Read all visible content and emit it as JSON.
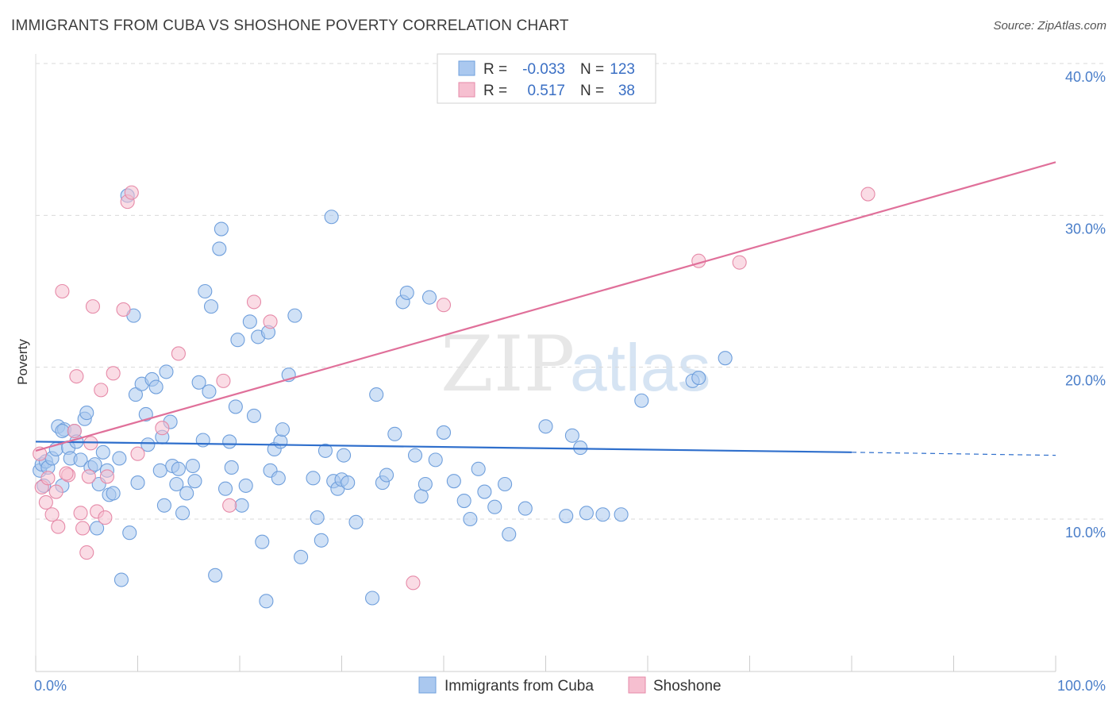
{
  "title": "IMMIGRANTS FROM CUBA VS SHOSHONE POVERTY CORRELATION CHART",
  "source": "Source: ZipAtlas.com",
  "watermark": {
    "zip": "ZIP",
    "atlas": "atlas"
  },
  "colors": {
    "blue_fill": "#aac8ef",
    "blue_stroke": "#6f9fdc",
    "blue_line": "#2f6fcc",
    "pink_fill": "#f6bfd0",
    "pink_stroke": "#e68aa8",
    "pink_line": "#e0709a",
    "grid": "#d9d9d9",
    "tick_text": "#4a7ec9"
  },
  "chart_data": {
    "type": "scatter",
    "xlabel": "",
    "ylabel": "Poverty",
    "xlim": [
      0,
      100
    ],
    "ylim": [
      0,
      42
    ],
    "x_ticks": [
      {
        "value": 0,
        "label": "0.0%"
      },
      {
        "value": 100,
        "label": "100.0%"
      }
    ],
    "y_ticks": [
      {
        "value": 10,
        "label": "10.0%"
      },
      {
        "value": 20,
        "label": "20.0%"
      },
      {
        "value": 30,
        "label": "30.0%"
      },
      {
        "value": 40,
        "label": "40.0%"
      }
    ],
    "legend": {
      "position": "top-center",
      "entries": [
        {
          "r_label": "R =",
          "r_value": "-0.033",
          "n_label": "N =",
          "n_value": "123"
        },
        {
          "r_label": "R =",
          "r_value": "0.517",
          "n_label": "N =",
          "n_value": "38"
        }
      ]
    },
    "series": [
      {
        "name": "Immigrants from Cuba",
        "color_key": "blue",
        "trend": {
          "x0": 0,
          "y0": 15.1,
          "x1": 80,
          "y1": 14.4,
          "dashed_to_x": 100,
          "dashed_to_y": 14.2
        },
        "points": [
          [
            0.4,
            13.2
          ],
          [
            0.6,
            13.6
          ],
          [
            0.8,
            12.2
          ],
          [
            1.0,
            13.8
          ],
          [
            1.2,
            13.4
          ],
          [
            1.6,
            14.0
          ],
          [
            2.0,
            14.6
          ],
          [
            2.2,
            16.1
          ],
          [
            2.6,
            12.2
          ],
          [
            2.8,
            15.9
          ],
          [
            3.2,
            14.7
          ],
          [
            3.4,
            14.0
          ],
          [
            3.8,
            15.8
          ],
          [
            4.0,
            15.1
          ],
          [
            4.4,
            13.9
          ],
          [
            4.8,
            16.6
          ],
          [
            5.0,
            17.0
          ],
          [
            5.4,
            13.4
          ],
          [
            5.8,
            13.6
          ],
          [
            6.0,
            9.4
          ],
          [
            6.2,
            12.3
          ],
          [
            6.6,
            14.4
          ],
          [
            7.0,
            13.2
          ],
          [
            7.2,
            11.6
          ],
          [
            7.6,
            11.7
          ],
          [
            8.2,
            14.0
          ],
          [
            8.4,
            6.0
          ],
          [
            9.0,
            31.3
          ],
          [
            9.2,
            9.1
          ],
          [
            9.6,
            23.4
          ],
          [
            9.8,
            18.2
          ],
          [
            10.0,
            12.4
          ],
          [
            10.4,
            18.9
          ],
          [
            10.8,
            16.9
          ],
          [
            11.0,
            14.9
          ],
          [
            11.4,
            19.2
          ],
          [
            11.8,
            18.7
          ],
          [
            12.2,
            13.2
          ],
          [
            12.4,
            15.4
          ],
          [
            12.6,
            10.9
          ],
          [
            12.8,
            19.7
          ],
          [
            13.2,
            16.4
          ],
          [
            13.4,
            13.5
          ],
          [
            13.8,
            12.3
          ],
          [
            14.0,
            13.3
          ],
          [
            14.4,
            10.4
          ],
          [
            14.8,
            11.7
          ],
          [
            15.4,
            13.5
          ],
          [
            15.6,
            12.5
          ],
          [
            16.0,
            19.0
          ],
          [
            16.4,
            15.2
          ],
          [
            16.6,
            25.0
          ],
          [
            17.0,
            18.4
          ],
          [
            17.2,
            24.0
          ],
          [
            17.6,
            6.3
          ],
          [
            18.0,
            27.8
          ],
          [
            18.2,
            29.1
          ],
          [
            18.6,
            12.0
          ],
          [
            19.0,
            15.1
          ],
          [
            19.2,
            13.4
          ],
          [
            19.6,
            17.4
          ],
          [
            19.8,
            21.8
          ],
          [
            20.2,
            10.9
          ],
          [
            20.6,
            12.2
          ],
          [
            21.0,
            23.0
          ],
          [
            21.4,
            16.8
          ],
          [
            21.8,
            22.0
          ],
          [
            22.2,
            8.5
          ],
          [
            22.6,
            4.6
          ],
          [
            22.8,
            22.3
          ],
          [
            23.0,
            13.2
          ],
          [
            23.4,
            14.6
          ],
          [
            23.8,
            12.7
          ],
          [
            24.0,
            15.1
          ],
          [
            24.2,
            15.9
          ],
          [
            24.8,
            19.5
          ],
          [
            25.4,
            23.4
          ],
          [
            26.0,
            7.5
          ],
          [
            27.2,
            12.7
          ],
          [
            27.6,
            10.1
          ],
          [
            28.0,
            8.6
          ],
          [
            28.4,
            14.5
          ],
          [
            29.0,
            29.9
          ],
          [
            29.2,
            12.5
          ],
          [
            29.6,
            12.0
          ],
          [
            30.0,
            12.6
          ],
          [
            30.2,
            14.2
          ],
          [
            30.6,
            12.4
          ],
          [
            31.4,
            9.8
          ],
          [
            33.0,
            4.8
          ],
          [
            33.4,
            18.2
          ],
          [
            34.0,
            12.4
          ],
          [
            34.4,
            12.9
          ],
          [
            35.2,
            15.6
          ],
          [
            36.0,
            24.3
          ],
          [
            36.4,
            24.9
          ],
          [
            37.2,
            14.2
          ],
          [
            37.8,
            11.5
          ],
          [
            38.2,
            12.3
          ],
          [
            38.6,
            24.6
          ],
          [
            39.2,
            13.9
          ],
          [
            40.0,
            15.7
          ],
          [
            41.0,
            12.5
          ],
          [
            42.0,
            11.2
          ],
          [
            42.6,
            10.0
          ],
          [
            43.4,
            13.3
          ],
          [
            44.0,
            11.8
          ],
          [
            45.0,
            10.8
          ],
          [
            46.0,
            12.3
          ],
          [
            46.4,
            9.0
          ],
          [
            48.0,
            10.7
          ],
          [
            50.0,
            16.1
          ],
          [
            52.0,
            10.2
          ],
          [
            52.6,
            15.5
          ],
          [
            53.4,
            14.7
          ],
          [
            54.0,
            10.4
          ],
          [
            55.6,
            10.3
          ],
          [
            57.4,
            10.3
          ],
          [
            59.4,
            17.8
          ],
          [
            64.4,
            19.1
          ],
          [
            65.0,
            19.3
          ],
          [
            67.6,
            20.6
          ],
          [
            2.6,
            15.8
          ]
        ]
      },
      {
        "name": "Shoshone",
        "color_key": "pink",
        "trend": {
          "x0": 0,
          "y0": 14.5,
          "x1": 100,
          "y1": 33.5
        },
        "points": [
          [
            0.4,
            14.3
          ],
          [
            0.6,
            12.1
          ],
          [
            1.0,
            11.1
          ],
          [
            1.2,
            12.7
          ],
          [
            1.6,
            10.3
          ],
          [
            2.0,
            11.8
          ],
          [
            2.2,
            9.5
          ],
          [
            2.6,
            25.0
          ],
          [
            3.2,
            12.9
          ],
          [
            3.8,
            15.8
          ],
          [
            4.0,
            19.4
          ],
          [
            4.4,
            10.4
          ],
          [
            4.6,
            9.4
          ],
          [
            5.0,
            7.8
          ],
          [
            5.2,
            12.8
          ],
          [
            5.6,
            24.0
          ],
          [
            6.0,
            10.5
          ],
          [
            6.4,
            18.5
          ],
          [
            6.8,
            10.1
          ],
          [
            7.0,
            12.8
          ],
          [
            7.6,
            19.6
          ],
          [
            8.6,
            23.8
          ],
          [
            9.0,
            30.9
          ],
          [
            9.4,
            31.5
          ],
          [
            10.0,
            14.3
          ],
          [
            12.4,
            16.0
          ],
          [
            14.0,
            20.9
          ],
          [
            18.4,
            19.1
          ],
          [
            19.0,
            10.9
          ],
          [
            21.4,
            24.3
          ],
          [
            23.0,
            23.0
          ],
          [
            37.0,
            5.8
          ],
          [
            40.0,
            24.1
          ],
          [
            65.0,
            27.0
          ],
          [
            69.0,
            26.9
          ],
          [
            81.6,
            31.4
          ],
          [
            3.0,
            13.0
          ],
          [
            5.4,
            15.0
          ]
        ]
      }
    ]
  },
  "bottom_legend": [
    {
      "label": "Immigrants from Cuba",
      "color_key": "blue"
    },
    {
      "label": "Shoshone",
      "color_key": "pink"
    }
  ]
}
